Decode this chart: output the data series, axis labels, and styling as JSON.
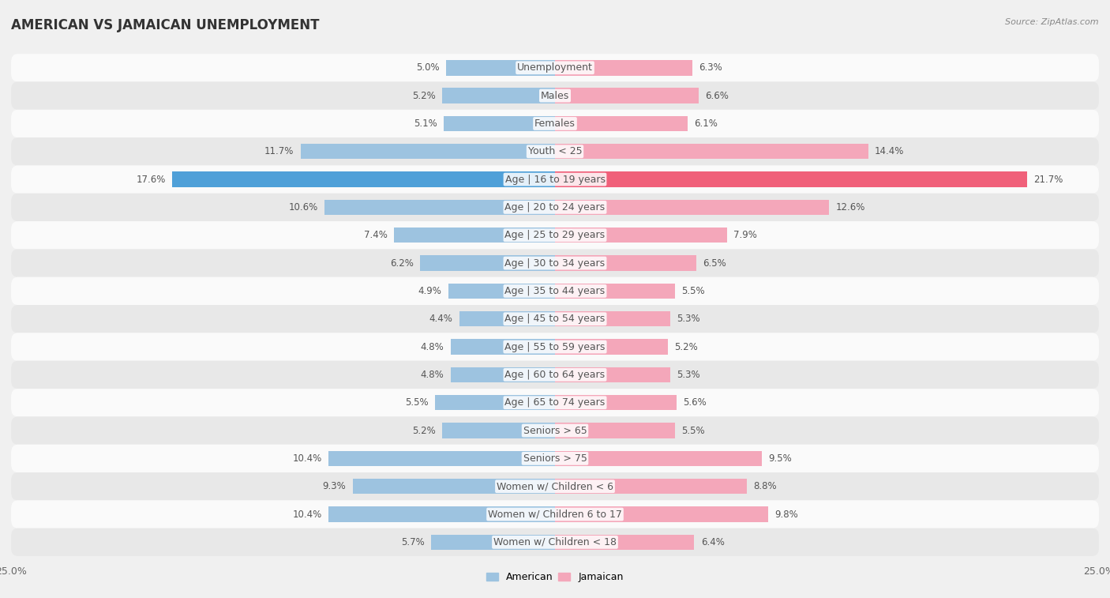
{
  "title": "AMERICAN VS JAMAICAN UNEMPLOYMENT",
  "source": "Source: ZipAtlas.com",
  "categories": [
    "Unemployment",
    "Males",
    "Females",
    "Youth < 25",
    "Age | 16 to 19 years",
    "Age | 20 to 24 years",
    "Age | 25 to 29 years",
    "Age | 30 to 34 years",
    "Age | 35 to 44 years",
    "Age | 45 to 54 years",
    "Age | 55 to 59 years",
    "Age | 60 to 64 years",
    "Age | 65 to 74 years",
    "Seniors > 65",
    "Seniors > 75",
    "Women w/ Children < 6",
    "Women w/ Children 6 to 17",
    "Women w/ Children < 18"
  ],
  "american": [
    5.0,
    5.2,
    5.1,
    11.7,
    17.6,
    10.6,
    7.4,
    6.2,
    4.9,
    4.4,
    4.8,
    4.8,
    5.5,
    5.2,
    10.4,
    9.3,
    10.4,
    5.7
  ],
  "jamaican": [
    6.3,
    6.6,
    6.1,
    14.4,
    21.7,
    12.6,
    7.9,
    6.5,
    5.5,
    5.3,
    5.2,
    5.3,
    5.6,
    5.5,
    9.5,
    8.8,
    9.8,
    6.4
  ],
  "american_color": "#9dc3e0",
  "jamaican_color": "#f4a7ba",
  "american_highlight": "#4fa0d8",
  "jamaican_highlight": "#f0607a",
  "highlight_row": 4,
  "bar_height": 0.55,
  "max_val": 25.0,
  "bg_color": "#f0f0f0",
  "row_bg_light": "#fafafa",
  "row_bg_dark": "#e8e8e8",
  "title_fontsize": 12,
  "label_fontsize": 9,
  "value_fontsize": 8.5,
  "axis_label_fontsize": 9
}
